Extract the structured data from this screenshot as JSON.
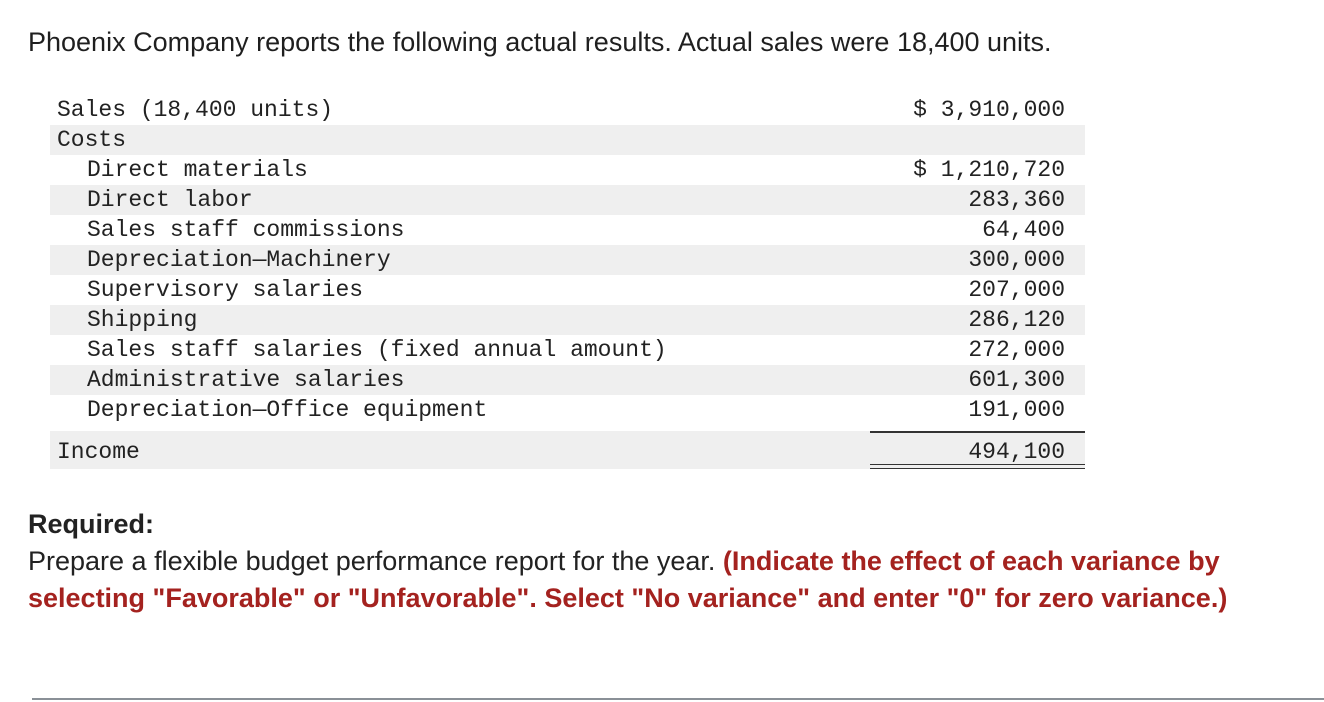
{
  "intro": "Phoenix Company reports the following actual results. Actual sales were 18,400 units.",
  "statement": {
    "sales": {
      "label": "Sales (18,400 units)",
      "amount": "$ 3,910,000"
    },
    "costs_heading": "Costs",
    "costs": [
      {
        "label": "Direct materials",
        "amount": "$ 1,210,720"
      },
      {
        "label": "Direct labor",
        "amount": "283,360"
      },
      {
        "label": "Sales staff commissions",
        "amount": "64,400"
      },
      {
        "label": "Depreciation—Machinery",
        "amount": "300,000"
      },
      {
        "label": "Supervisory salaries",
        "amount": "207,000"
      },
      {
        "label": "Shipping",
        "amount": "286,120"
      },
      {
        "label": "Sales staff salaries (fixed annual amount)",
        "amount": "272,000"
      },
      {
        "label": "Administrative salaries",
        "amount": "601,300"
      },
      {
        "label": "Depreciation—Office equipment",
        "amount": "191,000"
      }
    ],
    "income": {
      "label": "Income",
      "amount": "494,100"
    }
  },
  "required": {
    "heading": "Required:",
    "text": "Prepare a flexible budget performance report for the year.",
    "note": "(Indicate the effect of each variance by selecting \"Favorable\" or \"Unfavorable\". Select \"No variance\" and enter \"0\" for zero variance.)"
  }
}
